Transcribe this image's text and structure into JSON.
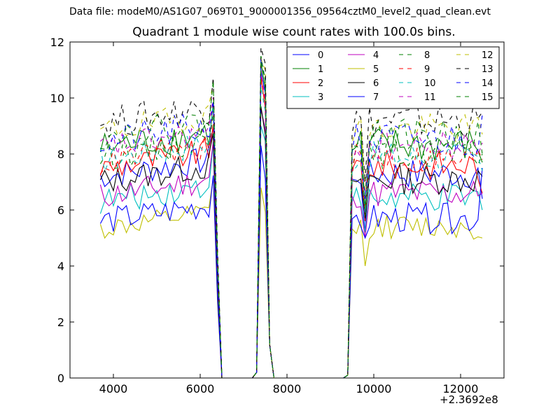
{
  "header": {
    "suptitle": "Data file: modeM0/AS1G07_069T01_9000001356_09564cztM0_level2_quad_clean.evt"
  },
  "chart_data": {
    "type": "line",
    "title": "Quadrant 1 module wise count rates with 100.0s bins.",
    "xlabel": "",
    "ylabel": "",
    "x_offset_label": "+2.3692e8",
    "xlim": [
      3000,
      13000
    ],
    "ylim": [
      0,
      12
    ],
    "xticks": [
      4000,
      6000,
      8000,
      10000,
      12000
    ],
    "xtick_labels": [
      "4000",
      "6000",
      "8000",
      "10000",
      "12000"
    ],
    "yticks": [
      0,
      2,
      4,
      6,
      8,
      10,
      12
    ],
    "ytick_labels": [
      "0",
      "2",
      "4",
      "6",
      "8",
      "10",
      "12"
    ],
    "legend_position": "top-right",
    "segments": {
      "a": {
        "start": 3700,
        "end": 6300,
        "step": 100
      },
      "gap1": [
        6400,
        6500,
        6600,
        6700,
        6800,
        6900,
        7000,
        7100,
        7200
      ],
      "b": [
        7300,
        7400,
        7500,
        7600,
        7700
      ],
      "gap2": [
        7800,
        7900,
        8000,
        8100,
        8200,
        8300,
        8400,
        8500,
        8600,
        8700,
        8800,
        8900,
        9000,
        9100,
        9200,
        9300
      ],
      "c": {
        "start": 9400,
        "end": 12500,
        "step": 100
      }
    },
    "series": [
      {
        "name": "0",
        "color": "#0000ff",
        "dash": "solid",
        "base": 7.2,
        "amp": 0.25,
        "spike": 11.0,
        "dip": 5.2,
        "end": 6.4
      },
      {
        "name": "1",
        "color": "#008000",
        "dash": "solid",
        "base": 8.2,
        "amp": 0.3,
        "spike": 11.3,
        "dip": 6.0,
        "end": 7.7
      },
      {
        "name": "2",
        "color": "#ff0000",
        "dash": "solid",
        "base": 7.5,
        "amp": 0.25,
        "spike": 10.8,
        "dip": 5.6,
        "end": 6.6
      },
      {
        "name": "3",
        "color": "#00bfbf",
        "dash": "solid",
        "base": 6.3,
        "amp": 0.25,
        "spike": 9.0,
        "dip": 5.2,
        "end": 6.0
      },
      {
        "name": "4",
        "color": "#bf00bf",
        "dash": "solid",
        "base": 6.5,
        "amp": 0.25,
        "spike": 9.6,
        "dip": 5.0,
        "end": 6.6
      },
      {
        "name": "5",
        "color": "#bfbf00",
        "dash": "solid",
        "base": 5.3,
        "amp": 0.2,
        "spike": 6.8,
        "dip": 4.0,
        "end": 5.0
      },
      {
        "name": "6",
        "color": "#000000",
        "dash": "solid",
        "base": 7.0,
        "amp": 0.25,
        "spike": 9.7,
        "dip": 5.7,
        "end": 7.2
      },
      {
        "name": "7",
        "color": "#0000ff",
        "dash": "solid",
        "base": 5.6,
        "amp": 0.25,
        "spike": 8.3,
        "dip": 5.0,
        "end": 7.5
      },
      {
        "name": "8",
        "color": "#008000",
        "dash": "dashed",
        "base": 7.9,
        "amp": 0.25,
        "spike": 11.2,
        "dip": 5.8,
        "end": 8.0
      },
      {
        "name": "9",
        "color": "#ff0000",
        "dash": "dashed",
        "base": 7.7,
        "amp": 0.25,
        "spike": 10.6,
        "dip": 5.9,
        "end": 7.8
      },
      {
        "name": "10",
        "color": "#00bfbf",
        "dash": "dashed",
        "base": 7.8,
        "amp": 0.25,
        "spike": 10.4,
        "dip": 5.9,
        "end": 7.4
      },
      {
        "name": "11",
        "color": "#bf00bf",
        "dash": "dashed",
        "base": 8.2,
        "amp": 0.25,
        "spike": 11.0,
        "dip": 6.2,
        "end": 8.4
      },
      {
        "name": "12",
        "color": "#bfbf00",
        "dash": "dashed",
        "base": 8.8,
        "amp": 0.25,
        "spike": 11.4,
        "dip": 6.7,
        "end": 8.7
      },
      {
        "name": "13",
        "color": "#000000",
        "dash": "dashed",
        "base": 9.1,
        "amp": 0.3,
        "spike": 11.8,
        "dip": 7.0,
        "end": 9.5
      },
      {
        "name": "14",
        "color": "#0000ff",
        "dash": "dashed",
        "base": 8.4,
        "amp": 0.3,
        "spike": 11.4,
        "dip": 6.4,
        "end": 9.4
      },
      {
        "name": "15",
        "color": "#008000",
        "dash": "dashed",
        "base": 8.6,
        "amp": 0.25,
        "spike": 11.5,
        "dip": 6.1,
        "end": 8.0
      }
    ]
  }
}
